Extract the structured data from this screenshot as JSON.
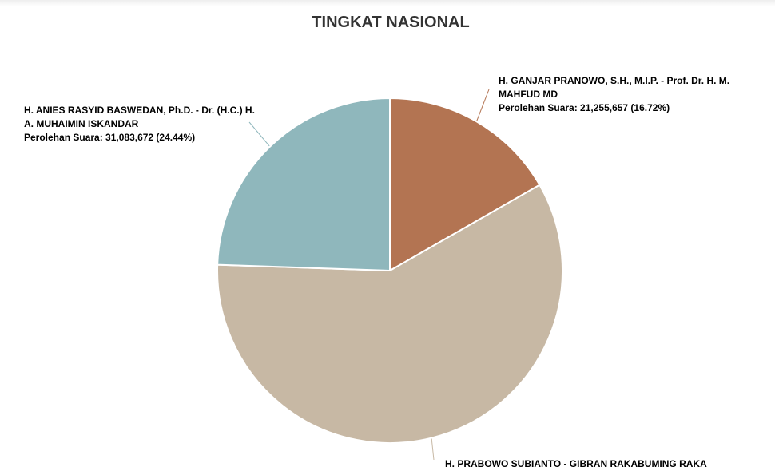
{
  "chart_data": {
    "type": "pie",
    "title": "TINGKAT NASIONAL",
    "value_prefix": "Perolehan Suara: ",
    "slices": [
      {
        "name": "H. GANJAR PRANOWO, S.H., M.I.P. - Prof. Dr. H. M. MAHFUD MD",
        "value": 21255657,
        "value_text": "21,255,657",
        "percent": 16.72,
        "percent_text": "(16.72%)",
        "color": "#b37452"
      },
      {
        "name": "H. PRABOWO SUBIANTO - GIBRAN RAKABUMING RAKA",
        "value": 74777469,
        "value_text": "",
        "percent": 58.84,
        "percent_text": "",
        "color": "#c7b8a4"
      },
      {
        "name": "H. ANIES RASYID BASWEDAN, Ph.D. - Dr. (H.C.) H. A. MUHAIMIN ISKANDAR",
        "value": 31083672,
        "value_text": "31,083,672",
        "percent": 24.44,
        "percent_text": "(24.44%)",
        "color": "#8fb7bc"
      }
    ],
    "legend": "none"
  }
}
